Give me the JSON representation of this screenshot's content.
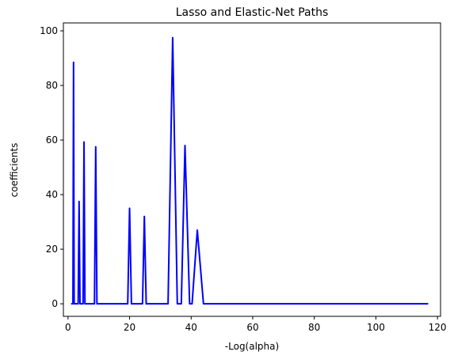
{
  "chart_data": {
    "type": "line",
    "title": "Lasso and Elastic-Net Paths",
    "x_label": "-Log(alpha)",
    "y_label": "coefficients",
    "x": [
      1,
      1.6,
      1.8,
      2.0,
      3.3,
      3.6,
      3.9,
      4.9,
      5.2,
      5.5,
      8.6,
      9,
      9.4,
      19.4,
      20,
      20.6,
      24.2,
      24.8,
      25.4,
      32.5,
      34,
      35.5,
      36.8,
      38,
      39.5,
      40.3,
      42,
      44,
      117
    ],
    "series": [
      {
        "color": "#0000ff",
        "values": [
          0,
          0,
          88.5,
          0,
          0,
          37.5,
          0,
          0,
          59.3,
          0,
          0,
          57.5,
          0,
          0,
          35,
          0,
          0,
          32,
          0,
          0,
          97.5,
          0,
          0,
          58,
          0,
          0,
          27,
          0,
          0
        ]
      }
    ],
    "xlim": [
      -1.5,
      121
    ],
    "ylim": [
      -4.6,
      102.9
    ],
    "xticks": [
      0,
      20,
      40,
      60,
      80,
      100,
      120
    ],
    "yticks": [
      0,
      20,
      40,
      60,
      80,
      100
    ]
  }
}
